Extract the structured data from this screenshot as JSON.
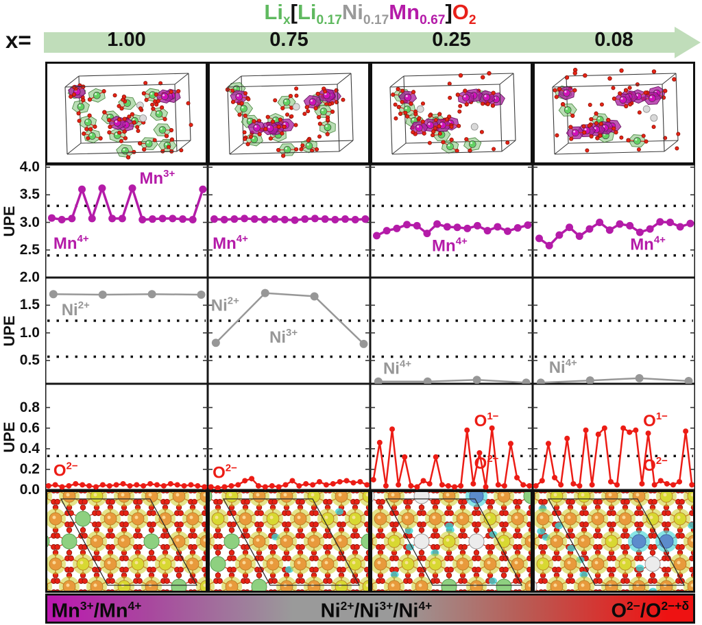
{
  "title": {
    "parts": [
      {
        "t": "Li",
        "sub": "x",
        "c": "#5fb95f"
      },
      {
        "t": "[",
        "sub": "",
        "c": "#111111"
      },
      {
        "t": "Li",
        "sub": "0.17",
        "c": "#5fb95f"
      },
      {
        "t": "Ni",
        "sub": "0.17",
        "c": "#9a9a9a"
      },
      {
        "t": "Mn",
        "sub": "0.67",
        "c": "#b41ba8"
      },
      {
        "t": "]",
        "sub": "",
        "c": "#111111"
      },
      {
        "t": "O",
        "sub": "2",
        "c": "#e8201a"
      }
    ]
  },
  "x_axis": {
    "label": "x=",
    "values": [
      "1.00",
      "0.75",
      "0.25",
      "0.08"
    ],
    "arrow_color": "#c0ddba"
  },
  "chart_data": {
    "type": "line",
    "note": "Unpaired-electron (UPE) per-site plots for Mn, Ni, O at four Li contents x",
    "rows": [
      {
        "element": "Mn",
        "ylabel": "UPE",
        "color": "#b41ba8",
        "ylim": [
          2.0,
          4.05
        ],
        "yticks": [
          {
            "label": "4.0",
            "value": 4.0
          },
          {
            "label": "3.5",
            "value": 3.5
          },
          {
            "label": "3.0",
            "value": 3.0
          },
          {
            "label": "2.5",
            "value": 2.5
          }
        ],
        "dotted": [
          3.3,
          2.4
        ],
        "xspan": [
          0.04,
          0.97
        ],
        "marker": 5.5,
        "lw": 3.5,
        "panels": [
          {
            "x": "1.00",
            "values": [
              3.08,
              3.05,
              3.07,
              3.6,
              3.07,
              3.62,
              3.07,
              3.07,
              3.62,
              3.05,
              3.06,
              3.07,
              3.07,
              3.06,
              3.05,
              3.6
            ],
            "annotations": [
              {
                "t": "Mn",
                "s": "3+",
                "px": 0.58,
                "v": 3.8
              },
              {
                "t": "Mn",
                "s": "4+",
                "px": 0.05,
                "v": 2.62
              }
            ]
          },
          {
            "x": "0.75",
            "values": [
              3.06,
              3.05,
              3.06,
              3.07,
              3.06,
              3.05,
              3.06,
              3.05,
              3.04,
              3.06,
              3.07,
              3.06,
              3.05,
              3.06,
              3.05,
              3.06
            ],
            "annotations": [
              {
                "t": "Mn",
                "s": "4+",
                "px": 0.03,
                "v": 2.62
              }
            ]
          },
          {
            "x": "0.25",
            "values": [
              2.76,
              2.85,
              2.89,
              2.96,
              2.94,
              2.8,
              2.97,
              2.92,
              2.91,
              2.89,
              2.94,
              2.85,
              2.92,
              2.84,
              2.9,
              2.95
            ],
            "annotations": [
              {
                "t": "Mn",
                "s": "4+",
                "px": 0.38,
                "v": 2.58
              }
            ]
          },
          {
            "x": "0.08",
            "values": [
              2.71,
              2.58,
              2.77,
              2.91,
              2.75,
              2.88,
              3.0,
              2.86,
              2.97,
              2.94,
              2.82,
              2.88,
              3.01,
              3.0,
              2.92,
              2.98
            ],
            "annotations": [
              {
                "t": "Mn",
                "s": "4+",
                "px": 0.6,
                "v": 2.6
              }
            ]
          }
        ]
      },
      {
        "element": "Ni",
        "ylabel": "UPE",
        "color": "#979797",
        "ylim": [
          0.08,
          2.0
        ],
        "yticks": [
          {
            "label": "2.0",
            "value": 2.0
          },
          {
            "label": "1.5",
            "value": 1.5
          },
          {
            "label": "1.0",
            "value": 1.0
          },
          {
            "label": "0.5",
            "value": 0.5
          }
        ],
        "dotted": [
          1.22,
          0.57
        ],
        "xspan": [
          0.05,
          0.96
        ],
        "marker": 6,
        "lw": 2.5,
        "panels": [
          {
            "x": "1.00",
            "values": [
              1.7,
              1.69,
              1.7,
              1.69
            ],
            "annotations": [
              {
                "t": "Ni",
                "s": "2+",
                "px": 0.1,
                "v": 1.42
              }
            ]
          },
          {
            "x": "0.75",
            "values": [
              0.82,
              1.72,
              1.66,
              0.8
            ],
            "annotations": [
              {
                "t": "Ni",
                "s": "2+",
                "px": 0.02,
                "v": 1.5
              },
              {
                "t": "Ni",
                "s": "3+",
                "px": 0.38,
                "v": 0.92
              }
            ]
          },
          {
            "x": "0.25",
            "values": [
              0.12,
              0.12,
              0.15,
              0.1
            ],
            "annotations": [
              {
                "t": "Ni",
                "s": "4+",
                "px": 0.08,
                "v": 0.36
              }
            ]
          },
          {
            "x": "0.08",
            "values": [
              0.1,
              0.14,
              0.18,
              0.13
            ],
            "annotations": [
              {
                "t": "Ni",
                "s": "4+",
                "px": 0.1,
                "v": 0.38
              }
            ]
          }
        ]
      },
      {
        "element": "O",
        "ylabel": "UPE",
        "color": "#ec1c15",
        "ylim": [
          0.0,
          1.03
        ],
        "yticks": [
          {
            "label": "0.8",
            "value": 0.8
          },
          {
            "label": "0.6",
            "value": 0.6
          },
          {
            "label": "0.4",
            "value": 0.4
          },
          {
            "label": "0.2",
            "value": 0.2
          },
          {
            "label": "0.0",
            "value": 0.0
          }
        ],
        "dotted": [
          0.33
        ],
        "xspan": [
          0.02,
          0.98
        ],
        "marker": 4,
        "lw": 2.5,
        "panels": [
          {
            "x": "1.00",
            "values": [
              0.04,
              0.05,
              0.03,
              0.04,
              0.06,
              0.05,
              0.04,
              0.03,
              0.05,
              0.04,
              0.05,
              0.06,
              0.04,
              0.05,
              0.04,
              0.06,
              0.05,
              0.04,
              0.06,
              0.05,
              0.04,
              0.05,
              0.04,
              0.03
            ],
            "annotations": [
              {
                "t": "O",
                "s": "2−",
                "px": 0.05,
                "v": 0.19
              }
            ]
          },
          {
            "x": "0.75",
            "values": [
              0.03,
              0.02,
              0.03,
              0.04,
              0.05,
              0.09,
              0.11,
              0.04,
              0.03,
              0.04,
              0.03,
              0.05,
              0.09,
              0.04,
              0.06,
              0.05,
              0.08,
              0.05,
              0.06,
              0.08,
              0.09,
              0.07,
              0.08,
              0.05
            ],
            "annotations": [
              {
                "t": "O",
                "s": "2−",
                "px": 0.03,
                "v": 0.17
              }
            ]
          },
          {
            "x": "0.25",
            "values": [
              0.1,
              0.46,
              0.04,
              0.59,
              0.05,
              0.32,
              0.04,
              0.03,
              0.09,
              0.06,
              0.32,
              0.05,
              0.04,
              0.03,
              0.04,
              0.58,
              0.06,
              0.36,
              0.03,
              0.6,
              0.05,
              0.04,
              0.45,
              0.12,
              0.05,
              0.04
            ],
            "annotations": [
              {
                "t": "O",
                "s": "1−",
                "px": 0.64,
                "v": 0.67
              },
              {
                "t": "O",
                "s": "2−",
                "px": 0.64,
                "v": 0.26
              }
            ]
          },
          {
            "x": "0.08",
            "values": [
              0.04,
              0.09,
              0.45,
              0.12,
              0.05,
              0.5,
              0.06,
              0.04,
              0.58,
              0.05,
              0.54,
              0.6,
              0.08,
              0.05,
              0.6,
              0.56,
              0.58,
              0.06,
              0.55,
              0.05,
              0.09,
              0.06,
              0.05,
              0.08,
              0.57,
              0.05
            ],
            "annotations": [
              {
                "t": "O",
                "s": "1−",
                "px": 0.68,
                "v": 0.67
              },
              {
                "t": "O",
                "s": "2−",
                "px": 0.68,
                "v": 0.24
              }
            ]
          }
        ]
      }
    ]
  },
  "structures_3d": [
    {
      "x": "1.00",
      "green": 15,
      "purple": 5,
      "gray": 2,
      "red_extra": 26,
      "loose": 0,
      "seed": 11
    },
    {
      "x": "0.75",
      "green": 12,
      "purple": 8,
      "gray": 1,
      "red_extra": 24,
      "loose": 0,
      "seed": 23
    },
    {
      "x": "0.25",
      "green": 8,
      "purple": 9,
      "gray": 2,
      "red_extra": 22,
      "loose": 3,
      "seed": 37
    },
    {
      "x": "0.08",
      "green": 5,
      "purple": 11,
      "gray": 2,
      "red_extra": 20,
      "loose": 8,
      "seed": 49
    }
  ],
  "structures_2d": [
    {
      "x": "1.00",
      "green": 5,
      "white": 0,
      "blue": 0,
      "cyan": 0,
      "seed": 101
    },
    {
      "x": "0.75",
      "green": 5,
      "white": 0,
      "blue": 0,
      "cyan": 3,
      "seed": 113
    },
    {
      "x": "0.25",
      "green": 3,
      "white": 4,
      "blue": 1,
      "cyan": 8,
      "seed": 127
    },
    {
      "x": "0.08",
      "green": 0,
      "white": 3,
      "blue": 2,
      "cyan": 10,
      "seed": 139
    }
  ],
  "legend_bar": {
    "gradient": [
      "#bc17b0",
      "#9a9a9a",
      "#ee1212"
    ],
    "items": [
      {
        "parts": [
          {
            "t": "Mn",
            "s": "3+"
          },
          {
            "t": "/",
            "s": ""
          },
          {
            "t": "Mn",
            "s": "4+"
          }
        ]
      },
      {
        "parts": [
          {
            "t": "Ni",
            "s": "2+"
          },
          {
            "t": "/",
            "s": ""
          },
          {
            "t": "Ni",
            "s": "3+"
          },
          {
            "t": "/",
            "s": ""
          },
          {
            "t": "Ni",
            "s": "4+"
          }
        ]
      },
      {
        "parts": [
          {
            "t": "O",
            "s": "2−"
          },
          {
            "t": "/",
            "s": ""
          },
          {
            "t": "O",
            "s": "2−+δ"
          }
        ]
      }
    ]
  }
}
